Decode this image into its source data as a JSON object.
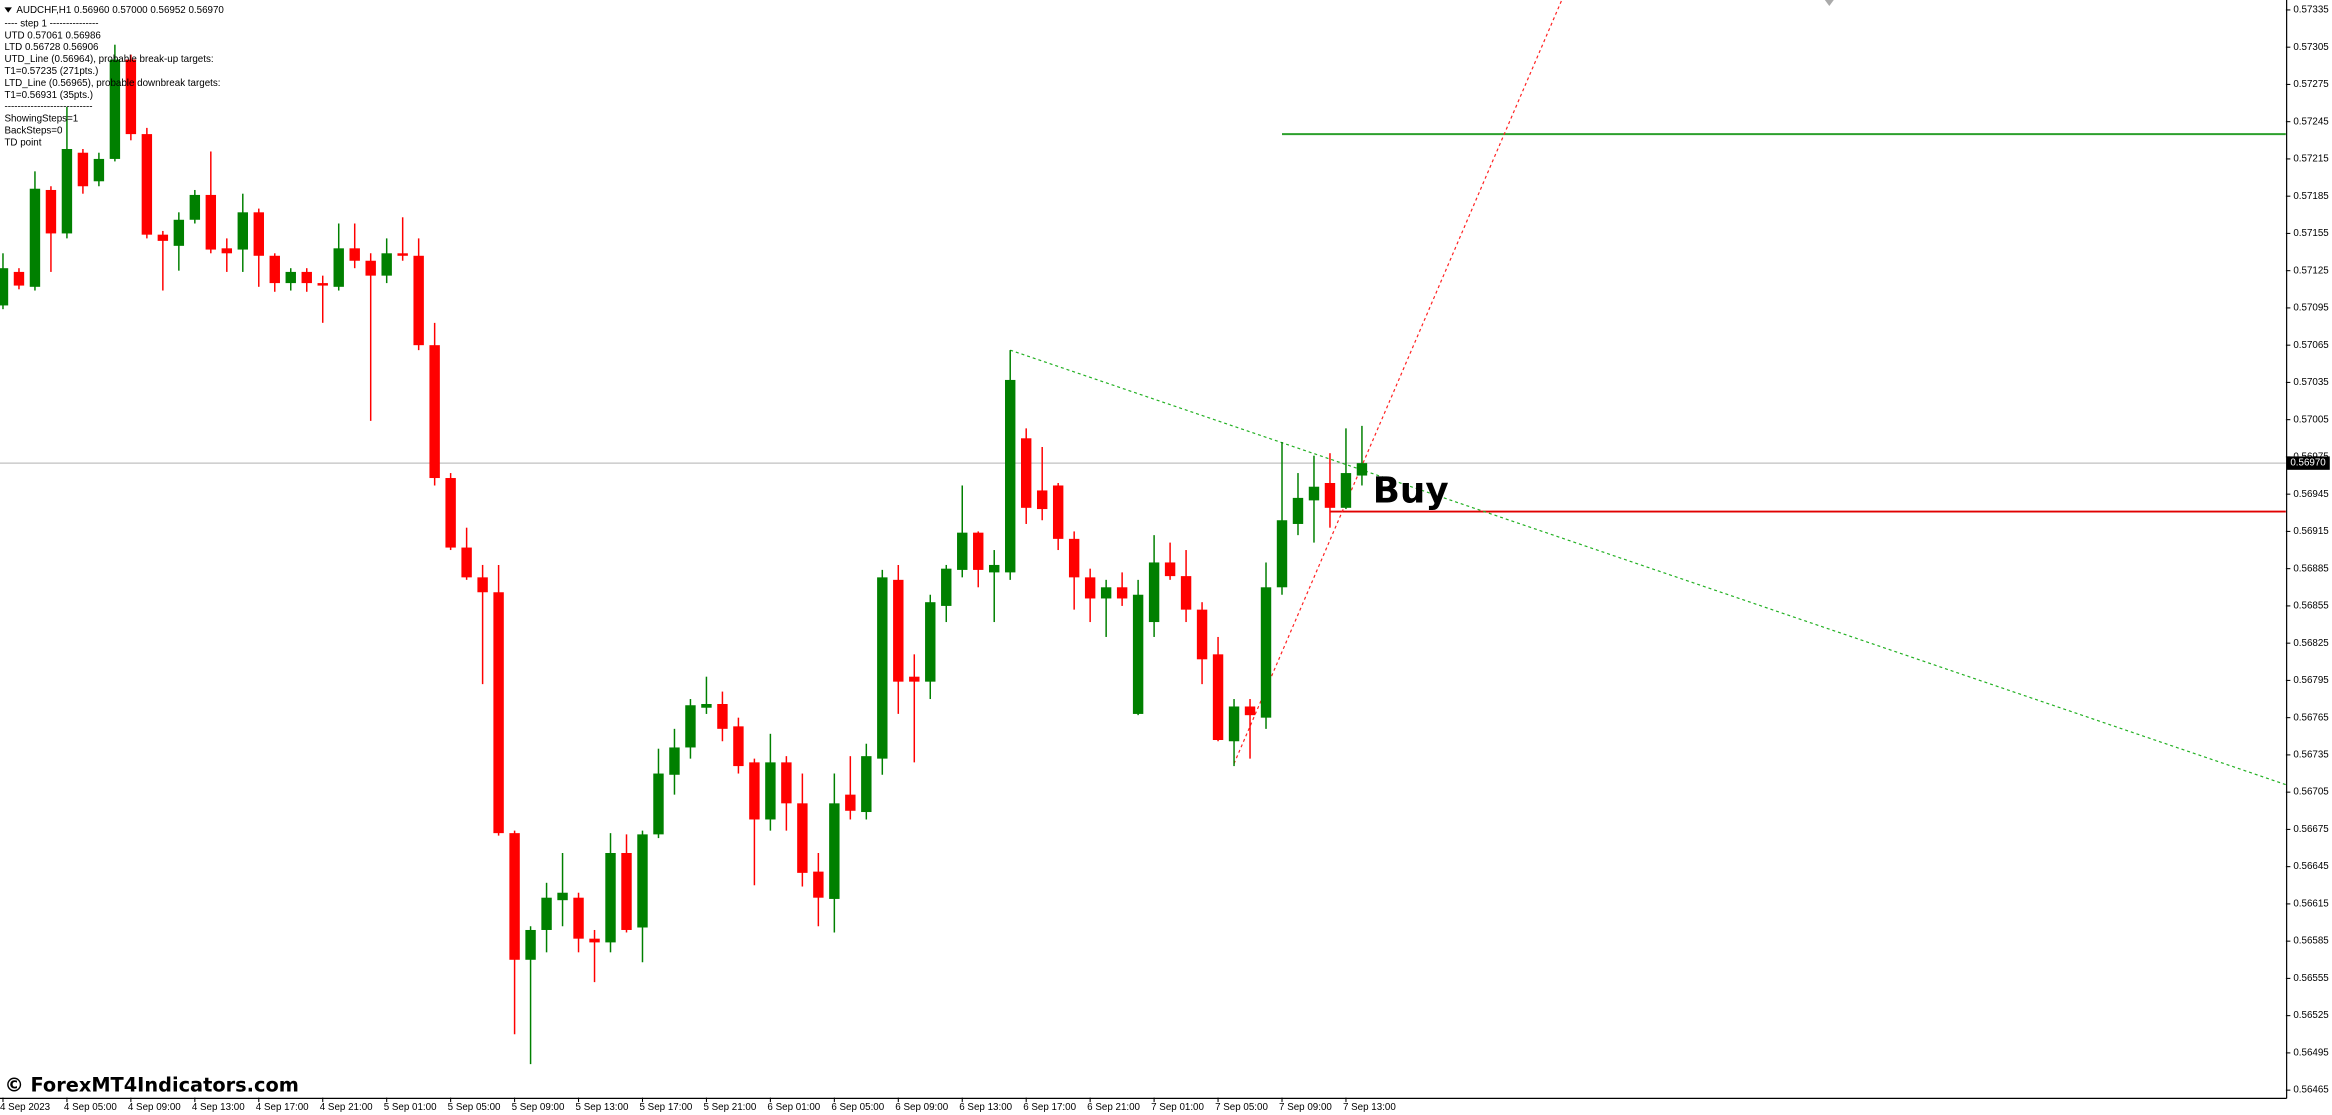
{
  "chart_data": {
    "type": "candlestick",
    "symbol_line": "AUDCHF,H1  0.56960 0.57000 0.56952 0.56970",
    "info_lines": [
      "---- step 1 ---------------",
      "UTD  0.57061  0.56986",
      "LTD  0.56728  0.56906",
      "UTD_Line (0.56964), probable break-up targets:",
      "T1=0.57235 (271pts.)",
      "LTD_Line (0.56965), probable downbreak targets:",
      "T1=0.56931 (35pts.)",
      "---------------------------",
      "ShowingSteps=1",
      "BackSteps=0",
      "TD point"
    ],
    "signal_label": "Buy",
    "watermark": "© ForexMT4Indicators.com",
    "up_color": "#008000",
    "down_color": "#ff0000",
    "categories": [
      "4 Sep 2023",
      null,
      null,
      null,
      "4 Sep 05:00",
      null,
      null,
      null,
      "4 Sep 09:00",
      null,
      null,
      null,
      "4 Sep 13:00",
      null,
      null,
      null,
      "4 Sep 17:00",
      null,
      null,
      null,
      "4 Sep 21:00",
      null,
      null,
      null,
      "5 Sep 01:00",
      null,
      null,
      null,
      "5 Sep 05:00",
      null,
      null,
      null,
      "5 Sep 09:00",
      null,
      null,
      null,
      "5 Sep 13:00",
      null,
      null,
      null,
      "5 Sep 17:00",
      null,
      null,
      null,
      "5 Sep 21:00",
      null,
      null,
      null,
      "6 Sep 01:00",
      null,
      null,
      null,
      "6 Sep 05:00",
      null,
      null,
      null,
      "6 Sep 09:00",
      null,
      null,
      null,
      "6 Sep 13:00",
      null,
      null,
      null,
      "6 Sep 17:00",
      null,
      null,
      null,
      "6 Sep 21:00",
      null,
      null,
      null,
      "7 Sep 01:00",
      null,
      null,
      null,
      "7 Sep 05:00",
      null,
      null,
      null,
      "7 Sep 09:00",
      null,
      null,
      null,
      "7 Sep 13:00",
      null
    ],
    "open": [
      0.57097,
      0.57124,
      0.57112,
      0.5719,
      0.57155,
      0.5722,
      0.57197,
      0.57215,
      0.57295,
      0.57235,
      0.57154,
      0.57145,
      0.57166,
      0.57186,
      0.57143,
      0.57142,
      0.57172,
      0.57137,
      0.57115,
      0.57124,
      0.57115,
      0.57112,
      0.57143,
      0.57133,
      0.57121,
      0.57139,
      0.57137,
      0.57065,
      0.56958,
      0.56902,
      0.56878,
      0.56866,
      0.56672,
      0.5657,
      0.56594,
      0.56618,
      0.5662,
      0.56587,
      0.56584,
      0.56656,
      0.56596,
      0.56671,
      0.56719,
      0.56741,
      0.56773,
      0.56776,
      0.56758,
      0.56729,
      0.56683,
      0.56729,
      0.56696,
      0.56641,
      0.56619,
      0.56703,
      0.56689,
      0.56732,
      0.56876,
      0.56798,
      0.56794,
      0.56855,
      0.56884,
      0.56914,
      0.56882,
      0.56882,
      0.5699,
      0.56948,
      0.56952,
      0.56909,
      0.56878,
      0.56861,
      0.5687,
      0.56768,
      0.56842,
      0.5689,
      0.56879,
      0.56852,
      0.56816,
      0.56746,
      0.56774,
      0.56765,
      0.5687,
      0.56921,
      0.5694,
      0.56954,
      0.56934,
      0.5696
    ],
    "high": [
      0.57139,
      0.57127,
      0.57205,
      0.57193,
      0.57257,
      0.57223,
      0.5722,
      0.57307,
      0.57299,
      0.5724,
      0.57157,
      0.57172,
      0.5719,
      0.57221,
      0.57151,
      0.57187,
      0.57175,
      0.57139,
      0.57127,
      0.57127,
      0.57121,
      0.57163,
      0.57163,
      0.57139,
      0.57151,
      0.57168,
      0.57151,
      0.57083,
      0.56962,
      0.56918,
      0.56888,
      0.56888,
      0.56674,
      0.56597,
      0.56632,
      0.56656,
      0.56624,
      0.56594,
      0.56672,
      0.56671,
      0.56674,
      0.5674,
      0.56756,
      0.5678,
      0.56798,
      0.56786,
      0.56765,
      0.56732,
      0.56752,
      0.56734,
      0.5672,
      0.56656,
      0.5672,
      0.56734,
      0.56744,
      0.56884,
      0.56888,
      0.56816,
      0.56864,
      0.56888,
      0.56952,
      0.56915,
      0.569,
      0.57061,
      0.56998,
      0.56983,
      0.56954,
      0.56915,
      0.56885,
      0.56876,
      0.56882,
      0.56876,
      0.56912,
      0.56906,
      0.569,
      0.56858,
      0.5683,
      0.5678,
      0.5678,
      0.5689,
      0.56987,
      0.56962,
      0.56976,
      0.56978,
      0.56998,
      0.57
    ],
    "low": [
      0.57094,
      0.5711,
      0.57109,
      0.57124,
      0.57151,
      0.57187,
      0.57193,
      0.57213,
      0.5723,
      0.57151,
      0.57109,
      0.57125,
      0.57163,
      0.57139,
      0.57124,
      0.57124,
      0.57112,
      0.57108,
      0.57109,
      0.57108,
      0.57083,
      0.57109,
      0.57127,
      0.57004,
      0.57115,
      0.57133,
      0.57061,
      0.56952,
      0.569,
      0.56876,
      0.56792,
      0.5667,
      0.5651,
      0.56486,
      0.56576,
      0.56597,
      0.56576,
      0.56552,
      0.56576,
      0.56592,
      0.56568,
      0.56668,
      0.56703,
      0.56732,
      0.56768,
      0.56746,
      0.5672,
      0.5663,
      0.56674,
      0.56674,
      0.56629,
      0.56597,
      0.56592,
      0.56683,
      0.56683,
      0.56719,
      0.56768,
      0.56729,
      0.5678,
      0.56842,
      0.56878,
      0.5687,
      0.56842,
      0.56876,
      0.56921,
      0.56924,
      0.569,
      0.56852,
      0.56842,
      0.5683,
      0.56855,
      0.56767,
      0.5683,
      0.56876,
      0.56842,
      0.56792,
      0.56746,
      0.56726,
      0.56732,
      0.56756,
      0.56864,
      0.56912,
      0.56906,
      0.56918,
      0.56933,
      0.56952
    ],
    "close": [
      0.57127,
      0.57113,
      0.57191,
      0.57155,
      0.57223,
      0.57193,
      0.57215,
      0.57295,
      0.57235,
      0.57154,
      0.57149,
      0.57166,
      0.57186,
      0.57142,
      0.57139,
      0.57172,
      0.57137,
      0.57115,
      0.57124,
      0.57115,
      0.57113,
      0.57143,
      0.57133,
      0.57121,
      0.57139,
      0.57137,
      0.57065,
      0.56958,
      0.56902,
      0.56878,
      0.56866,
      0.56672,
      0.5657,
      0.56594,
      0.5662,
      0.56624,
      0.56587,
      0.56584,
      0.56656,
      0.56594,
      0.56671,
      0.5672,
      0.56741,
      0.56775,
      0.56776,
      0.56756,
      0.56726,
      0.56683,
      0.56729,
      0.56696,
      0.5664,
      0.5662,
      0.56696,
      0.5669,
      0.56734,
      0.56878,
      0.56794,
      0.56794,
      0.56858,
      0.56885,
      0.56914,
      0.56884,
      0.56888,
      0.57037,
      0.56934,
      0.56933,
      0.56909,
      0.56878,
      0.56861,
      0.5687,
      0.56861,
      0.56864,
      0.5689,
      0.56879,
      0.56852,
      0.56812,
      0.56747,
      0.56774,
      0.56767,
      0.5687,
      0.56924,
      0.56942,
      0.56951,
      0.56934,
      0.56962,
      0.5697
    ],
    "last_price": {
      "value": 0.5697,
      "label": "0.56970"
    },
    "levels": [
      {
        "value": 0.57235,
        "start": 80,
        "color": "#2ca02c"
      },
      {
        "value": 0.56931,
        "start": 83,
        "color": "#e00000"
      }
    ],
    "trendlines": [
      {
        "color": "#22b022",
        "points": [
          [
            63,
            0.57061
          ],
          [
            142.8,
            0.56711
          ]
        ]
      },
      {
        "color": "#ff2020",
        "points": [
          [
            77,
            0.56728
          ],
          [
            97.5,
            0.57343
          ]
        ]
      }
    ],
    "ylim": [
      0.56459,
      0.57343
    ],
    "yticks": [
      0.56465,
      0.56495,
      0.56525,
      0.56555,
      0.56585,
      0.56615,
      0.56645,
      0.56675,
      0.56705,
      0.56735,
      0.56765,
      0.56795,
      0.56825,
      0.56855,
      0.56885,
      0.56915,
      0.56945,
      0.56975,
      0.57005,
      0.57035,
      0.57065,
      0.57095,
      0.57125,
      0.57155,
      0.57185,
      0.57215,
      0.57245,
      0.57275,
      0.57305,
      0.57335
    ]
  }
}
